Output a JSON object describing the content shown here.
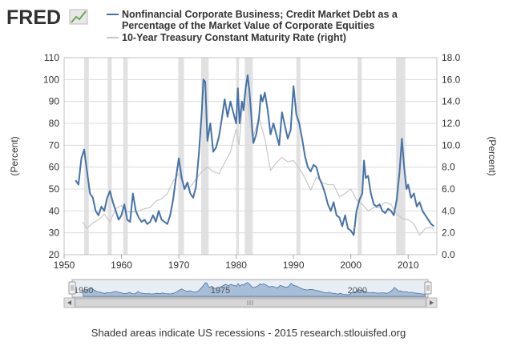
{
  "logo": {
    "text": "FRED"
  },
  "footer": {
    "text": "Shaded areas indicate US recessions - 2015 research.stlouisfed.org"
  },
  "navigator": {
    "labels": [
      "1950",
      "1975",
      "2000"
    ]
  },
  "colors": {
    "primary": "#4572A7",
    "secondary": "#c8c8c8",
    "recession": "#e1e1e1",
    "logo": "#303030",
    "navigator_fill": "#7c9cc4"
  },
  "chart_data": {
    "type": "line",
    "legend_position": "top",
    "grid": true,
    "x_range": [
      1950,
      2015
    ],
    "x_ticks": [
      "1950",
      "1960",
      "1970",
      "1980",
      "1990",
      "2000",
      "2010"
    ],
    "y_left": {
      "label": "(Percent)",
      "range": [
        20,
        110
      ],
      "ticks": [
        "20",
        "30",
        "40",
        "50",
        "60",
        "70",
        "80",
        "90",
        "100",
        "110"
      ]
    },
    "y_right": {
      "label": "(Percent)",
      "range": [
        0.0,
        18.0
      ],
      "ticks": [
        "0.0",
        "2.0",
        "4.0",
        "6.0",
        "8.0",
        "10.0",
        "12.0",
        "14.0",
        "16.0",
        "18.0"
      ]
    },
    "recessions": [
      [
        1953.5,
        1954.3
      ],
      [
        1957.6,
        1958.3
      ],
      [
        1960.3,
        1961.1
      ],
      [
        1969.9,
        1970.9
      ],
      [
        1973.9,
        1975.2
      ],
      [
        1980.0,
        1980.5
      ],
      [
        1981.5,
        1982.9
      ],
      [
        1990.5,
        1991.2
      ],
      [
        2001.2,
        2001.9
      ],
      [
        2007.9,
        2009.5
      ]
    ],
    "series": [
      {
        "name": "Nonfinancial Corporate Business; Credit Market Debt as a Percentage of the Market Value of Corporate Equities",
        "axis": "left",
        "points": [
          [
            1952.0,
            54
          ],
          [
            1952.5,
            52
          ],
          [
            1953.0,
            64
          ],
          [
            1953.5,
            68
          ],
          [
            1954.0,
            58
          ],
          [
            1954.5,
            48
          ],
          [
            1955.0,
            46
          ],
          [
            1955.5,
            40
          ],
          [
            1956.0,
            38
          ],
          [
            1956.5,
            42
          ],
          [
            1957.0,
            40
          ],
          [
            1957.5,
            46
          ],
          [
            1958.0,
            49
          ],
          [
            1958.5,
            44
          ],
          [
            1959.0,
            40
          ],
          [
            1959.5,
            36
          ],
          [
            1960.0,
            38
          ],
          [
            1960.5,
            43
          ],
          [
            1961.0,
            36
          ],
          [
            1961.5,
            35
          ],
          [
            1962.0,
            48
          ],
          [
            1962.5,
            40
          ],
          [
            1963.0,
            37
          ],
          [
            1963.5,
            35
          ],
          [
            1964.0,
            36
          ],
          [
            1964.5,
            34
          ],
          [
            1965.0,
            35
          ],
          [
            1965.5,
            38
          ],
          [
            1966.0,
            35
          ],
          [
            1966.5,
            40
          ],
          [
            1967.0,
            36
          ],
          [
            1967.5,
            35
          ],
          [
            1968.0,
            34
          ],
          [
            1968.5,
            38
          ],
          [
            1969.0,
            45
          ],
          [
            1969.5,
            55
          ],
          [
            1970.0,
            64
          ],
          [
            1970.5,
            55
          ],
          [
            1971.0,
            50
          ],
          [
            1971.5,
            53
          ],
          [
            1972.0,
            48
          ],
          [
            1972.5,
            46
          ],
          [
            1973.0,
            51
          ],
          [
            1973.5,
            66
          ],
          [
            1974.0,
            85
          ],
          [
            1974.3,
            100
          ],
          [
            1974.6,
            99
          ],
          [
            1975.0,
            72
          ],
          [
            1975.5,
            80
          ],
          [
            1976.0,
            67
          ],
          [
            1976.5,
            69
          ],
          [
            1977.0,
            74
          ],
          [
            1977.5,
            82
          ],
          [
            1978.0,
            91
          ],
          [
            1978.5,
            83
          ],
          [
            1979.0,
            90
          ],
          [
            1979.5,
            85
          ],
          [
            1980.0,
            80
          ],
          [
            1980.3,
            96
          ],
          [
            1980.6,
            80
          ],
          [
            1981.0,
            90
          ],
          [
            1981.3,
            86
          ],
          [
            1981.6,
            95
          ],
          [
            1982.0,
            102
          ],
          [
            1982.3,
            95
          ],
          [
            1982.6,
            85
          ],
          [
            1983.0,
            71
          ],
          [
            1983.5,
            75
          ],
          [
            1984.0,
            83
          ],
          [
            1984.3,
            93
          ],
          [
            1984.6,
            90
          ],
          [
            1985.0,
            94
          ],
          [
            1985.5,
            86
          ],
          [
            1986.0,
            75
          ],
          [
            1986.5,
            80
          ],
          [
            1987.0,
            75
          ],
          [
            1987.5,
            70
          ],
          [
            1988.0,
            85
          ],
          [
            1988.5,
            79
          ],
          [
            1989.0,
            73
          ],
          [
            1989.5,
            77
          ],
          [
            1990.0,
            97
          ],
          [
            1990.5,
            84
          ],
          [
            1991.0,
            80
          ],
          [
            1991.5,
            73
          ],
          [
            1992.0,
            65
          ],
          [
            1992.5,
            60
          ],
          [
            1993.0,
            58
          ],
          [
            1993.5,
            61
          ],
          [
            1994.0,
            60
          ],
          [
            1994.5,
            55
          ],
          [
            1995.0,
            52
          ],
          [
            1995.5,
            48
          ],
          [
            1996.0,
            43
          ],
          [
            1996.5,
            40
          ],
          [
            1997.0,
            44
          ],
          [
            1997.5,
            38
          ],
          [
            1998.0,
            37
          ],
          [
            1998.5,
            33
          ],
          [
            1999.0,
            38
          ],
          [
            1999.5,
            32
          ],
          [
            2000.0,
            31
          ],
          [
            2000.5,
            29
          ],
          [
            2001.0,
            40
          ],
          [
            2001.5,
            45
          ],
          [
            2002.0,
            48
          ],
          [
            2002.3,
            63
          ],
          [
            2002.6,
            55
          ],
          [
            2003.0,
            56
          ],
          [
            2003.5,
            48
          ],
          [
            2004.0,
            43
          ],
          [
            2004.5,
            42
          ],
          [
            2005.0,
            43
          ],
          [
            2005.5,
            40
          ],
          [
            2006.0,
            39
          ],
          [
            2006.5,
            41
          ],
          [
            2007.0,
            40
          ],
          [
            2007.5,
            38
          ],
          [
            2008.0,
            45
          ],
          [
            2008.5,
            58
          ],
          [
            2008.9,
            73
          ],
          [
            2009.3,
            60
          ],
          [
            2009.7,
            50
          ],
          [
            2010.0,
            52
          ],
          [
            2010.5,
            46
          ],
          [
            2011.0,
            48
          ],
          [
            2011.5,
            42
          ],
          [
            2012.0,
            44
          ],
          [
            2012.5,
            40
          ],
          [
            2013.0,
            38
          ],
          [
            2013.5,
            36
          ],
          [
            2014.0,
            34
          ],
          [
            2014.5,
            33
          ]
        ]
      },
      {
        "name": "10-Year Treasury Constant Maturity Rate (right)",
        "axis": "right",
        "points": [
          [
            1953.2,
            3.0
          ],
          [
            1954.0,
            2.4
          ],
          [
            1955.0,
            2.9
          ],
          [
            1956.0,
            3.2
          ],
          [
            1957.0,
            3.7
          ],
          [
            1958.0,
            3.0
          ],
          [
            1959.0,
            4.2
          ],
          [
            1960.0,
            4.5
          ],
          [
            1961.0,
            3.9
          ],
          [
            1962.0,
            3.9
          ],
          [
            1963.0,
            4.0
          ],
          [
            1964.0,
            4.2
          ],
          [
            1965.0,
            4.3
          ],
          [
            1966.0,
            4.9
          ],
          [
            1967.0,
            5.1
          ],
          [
            1968.0,
            5.6
          ],
          [
            1969.0,
            6.7
          ],
          [
            1970.0,
            7.4
          ],
          [
            1971.0,
            6.2
          ],
          [
            1972.0,
            6.2
          ],
          [
            1973.0,
            6.9
          ],
          [
            1974.0,
            7.6
          ],
          [
            1975.0,
            8.0
          ],
          [
            1976.0,
            7.6
          ],
          [
            1977.0,
            7.4
          ],
          [
            1978.0,
            8.4
          ],
          [
            1979.0,
            9.4
          ],
          [
            1980.0,
            11.5
          ],
          [
            1980.5,
            10.0
          ],
          [
            1981.0,
            13.0
          ],
          [
            1981.7,
            15.3
          ],
          [
            1982.0,
            14.0
          ],
          [
            1982.7,
            11.0
          ],
          [
            1983.0,
            10.8
          ],
          [
            1984.0,
            12.5
          ],
          [
            1985.0,
            10.6
          ],
          [
            1986.0,
            7.7
          ],
          [
            1987.0,
            8.4
          ],
          [
            1988.0,
            8.9
          ],
          [
            1989.0,
            8.5
          ],
          [
            1990.0,
            8.6
          ],
          [
            1991.0,
            7.9
          ],
          [
            1992.0,
            7.0
          ],
          [
            1993.0,
            5.9
          ],
          [
            1994.0,
            7.1
          ],
          [
            1995.0,
            6.6
          ],
          [
            1996.0,
            6.4
          ],
          [
            1997.0,
            6.4
          ],
          [
            1998.0,
            5.3
          ],
          [
            1999.0,
            5.6
          ],
          [
            2000.0,
            6.0
          ],
          [
            2001.0,
            5.0
          ],
          [
            2002.0,
            4.6
          ],
          [
            2003.0,
            4.0
          ],
          [
            2004.0,
            4.3
          ],
          [
            2005.0,
            4.3
          ],
          [
            2006.0,
            4.8
          ],
          [
            2007.0,
            4.6
          ],
          [
            2008.0,
            3.7
          ],
          [
            2009.0,
            3.3
          ],
          [
            2010.0,
            3.2
          ],
          [
            2011.0,
            2.8
          ],
          [
            2012.0,
            1.8
          ],
          [
            2013.0,
            2.4
          ],
          [
            2014.0,
            2.5
          ],
          [
            2014.5,
            2.3
          ]
        ]
      }
    ]
  }
}
